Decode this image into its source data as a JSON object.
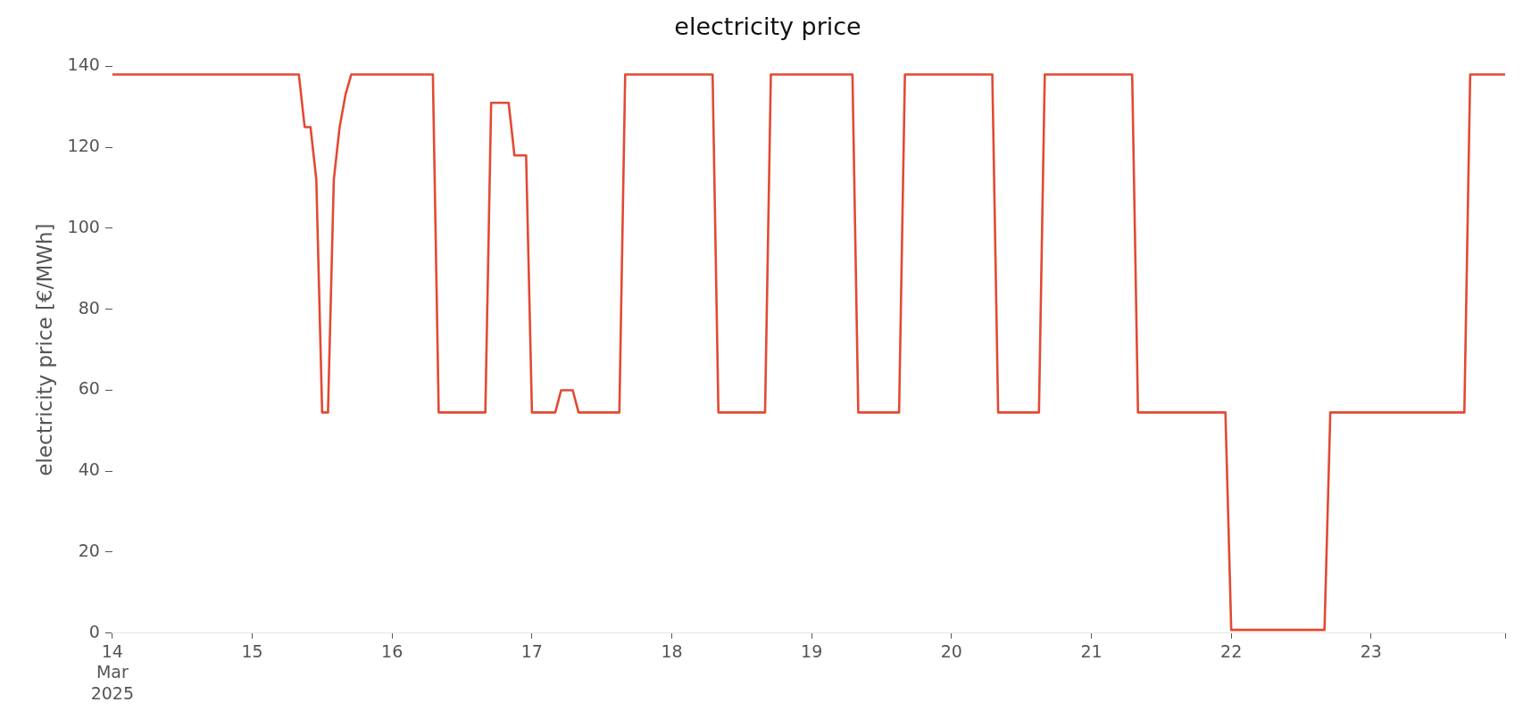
{
  "chart_data": {
    "type": "line",
    "title": "electricity price",
    "ylabel": "electricity price [€/MWh]",
    "marker": "none",
    "line_style": "solid",
    "x": [
      "2025-03-14T00:00",
      "2025-03-15T08:00",
      "2025-03-15T09:00",
      "2025-03-15T10:00",
      "2025-03-15T11:00",
      "2025-03-15T12:00",
      "2025-03-15T13:00",
      "2025-03-15T14:00",
      "2025-03-15T15:00",
      "2025-03-15T16:00",
      "2025-03-15T17:00",
      "2025-03-16T07:00",
      "2025-03-16T08:00",
      "2025-03-16T16:00",
      "2025-03-16T17:00",
      "2025-03-16T20:00",
      "2025-03-16T21:00",
      "2025-03-16T23:00",
      "2025-03-17T00:00",
      "2025-03-17T04:00",
      "2025-03-17T05:00",
      "2025-03-17T07:00",
      "2025-03-17T08:00",
      "2025-03-17T15:00",
      "2025-03-17T16:00",
      "2025-03-18T07:00",
      "2025-03-18T08:00",
      "2025-03-18T16:00",
      "2025-03-18T17:00",
      "2025-03-19T07:00",
      "2025-03-19T08:00",
      "2025-03-19T15:00",
      "2025-03-19T16:00",
      "2025-03-20T07:00",
      "2025-03-20T08:00",
      "2025-03-20T15:00",
      "2025-03-20T16:00",
      "2025-03-21T07:00",
      "2025-03-21T08:00",
      "2025-03-21T23:00",
      "2025-03-22T00:00",
      "2025-03-22T16:00",
      "2025-03-22T17:00",
      "2025-03-23T16:00",
      "2025-03-23T17:00",
      "2025-03-23T23:00"
    ],
    "series": [
      {
        "color": "#e24a33",
        "values": [
          138,
          138,
          125,
          125,
          112,
          54.5,
          54.5,
          112,
          125,
          133,
          138,
          138,
          54.5,
          54.5,
          131,
          131,
          118,
          118,
          54.5,
          54.5,
          60,
          60,
          54.5,
          54.5,
          138,
          138,
          54.5,
          54.5,
          138,
          138,
          54.5,
          54.5,
          138,
          138,
          54.5,
          54.5,
          138,
          138,
          54.5,
          54.5,
          0.8,
          0.8,
          54.5,
          54.5,
          138,
          138
        ]
      }
    ],
    "xlim": [
      "2025-03-14T00:00",
      "2025-03-23T23:00"
    ],
    "xticks": [
      {
        "value": "2025-03-14",
        "label": "14\nMar\n2025"
      },
      {
        "value": "2025-03-15",
        "label": "15"
      },
      {
        "value": "2025-03-16",
        "label": "16"
      },
      {
        "value": "2025-03-17",
        "label": "17"
      },
      {
        "value": "2025-03-18",
        "label": "18"
      },
      {
        "value": "2025-03-19",
        "label": "19"
      },
      {
        "value": "2025-03-20",
        "label": "20"
      },
      {
        "value": "2025-03-21",
        "label": "21"
      },
      {
        "value": "2025-03-22",
        "label": "22"
      },
      {
        "value": "2025-03-23",
        "label": "23"
      },
      {
        "value": "2025-03-23T23:00",
        "label": null
      }
    ],
    "ylim": [
      0,
      140
    ],
    "yticks": [
      0,
      20,
      40,
      60,
      80,
      100,
      120,
      140
    ]
  }
}
